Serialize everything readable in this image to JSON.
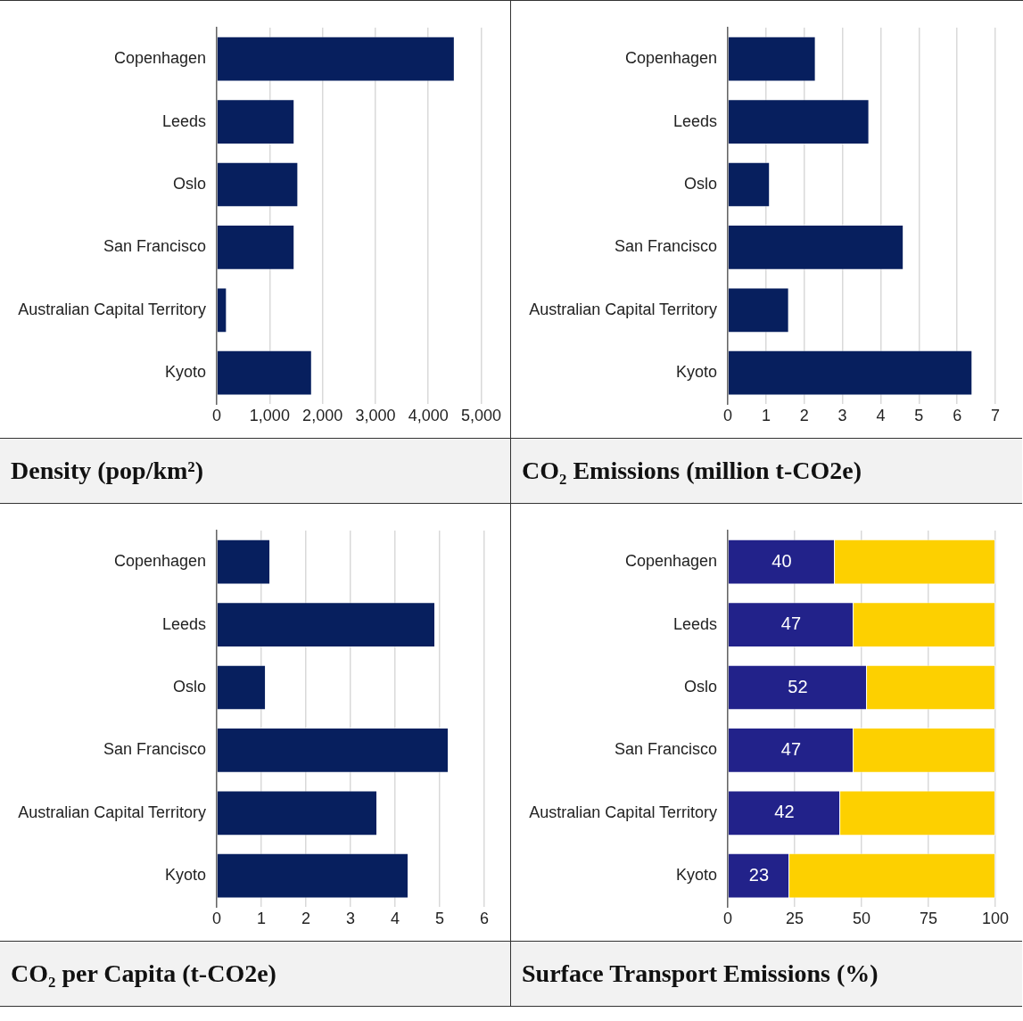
{
  "chart_data": [
    {
      "type": "bar",
      "orientation": "horizontal",
      "title": "Density (pop/km²)",
      "categories": [
        "Copenhagen",
        "Leeds",
        "Oslo",
        "San Francisco",
        "Australian Capital Territory",
        "Kyoto"
      ],
      "values": [
        4500,
        1470,
        1540,
        1470,
        190,
        1800
      ],
      "color": "#071f5e",
      "xlim": [
        0,
        5000
      ],
      "xticks": [
        0,
        {
          "value": 1000,
          "label": "1,000"
        },
        {
          "value": 2000,
          "label": "2,000"
        },
        {
          "value": 3000,
          "label": "3,000"
        },
        {
          "value": 4000,
          "label": "4,000"
        },
        {
          "value": 5000,
          "label": "5,000"
        }
      ],
      "grid": "x",
      "legend": false
    },
    {
      "type": "bar",
      "orientation": "horizontal",
      "title": "CO₂ Emissions (million t-CO2e)",
      "categories": [
        "Copenhagen",
        "Leeds",
        "Oslo",
        "San Francisco",
        "Australian Capital Territory",
        "Kyoto"
      ],
      "values": [
        2.3,
        3.7,
        1.1,
        4.6,
        1.6,
        6.4
      ],
      "color": "#071f5e",
      "xlim": [
        0,
        7
      ],
      "xticks": [
        0,
        1,
        2,
        3,
        4,
        5,
        6,
        7
      ],
      "grid": "x",
      "legend": false
    },
    {
      "type": "bar",
      "orientation": "horizontal",
      "title": "CO₂ per Capita (t-CO2e)",
      "categories": [
        "Copenhagen",
        "Leeds",
        "Oslo",
        "San Francisco",
        "Australian Capital Territory",
        "Kyoto"
      ],
      "values": [
        1.2,
        4.9,
        1.1,
        5.2,
        3.6,
        4.3
      ],
      "color": "#071f5e",
      "xlim": [
        0,
        6
      ],
      "xticks": [
        0,
        1,
        2,
        3,
        4,
        5,
        6
      ],
      "grid": "x",
      "legend": false
    },
    {
      "type": "bar",
      "orientation": "horizontal",
      "stacked": true,
      "title": "Surface Transport Emissions (%)",
      "categories": [
        "Copenhagen",
        "Leeds",
        "Oslo",
        "San Francisco",
        "Australian Capital Territory",
        "Kyoto"
      ],
      "series": [
        {
          "color": "#22228a",
          "values": [
            40,
            47,
            52,
            47,
            42,
            23
          ],
          "value_labels": [
            "40",
            "47",
            "52",
            "47",
            "42",
            "23"
          ]
        },
        {
          "color": "#fdd000",
          "values": [
            60,
            53,
            48,
            53,
            58,
            77
          ]
        }
      ],
      "xlim": [
        0,
        100
      ],
      "xticks": [
        0,
        25,
        50,
        75,
        100
      ],
      "grid": "x",
      "legend": false
    }
  ]
}
